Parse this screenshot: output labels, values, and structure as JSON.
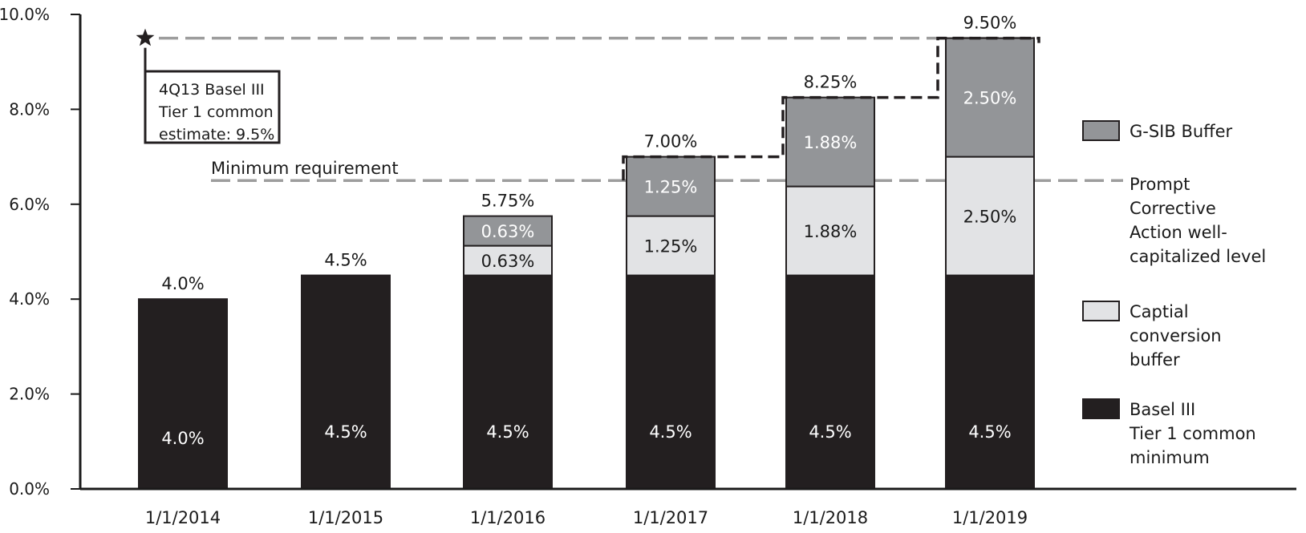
{
  "chart_data": {
    "type": "bar",
    "stacked": true,
    "title": "",
    "xlabel": "",
    "ylabel": "",
    "ylim": [
      0,
      10
    ],
    "y_ticks": [
      "0.0%",
      "2.0%",
      "4.0%",
      "6.0%",
      "8.0%",
      "10.0%"
    ],
    "categories": [
      "1/1/2014",
      "1/1/2015",
      "1/1/2016",
      "1/1/2017",
      "1/1/2018",
      "1/1/2019"
    ],
    "series": [
      {
        "name": "Basel III\nTier 1 common\nminimum",
        "color": "#231f20",
        "values": [
          4.0,
          4.5,
          4.5,
          4.5,
          4.5,
          4.5
        ],
        "labels": [
          "4.0%",
          "4.5%",
          "4.5%",
          "4.5%",
          "4.5%",
          "4.5%"
        ]
      },
      {
        "name": "Captial\nconversion\nbuffer",
        "color": "#e2e3e5",
        "values": [
          0,
          0,
          0.625,
          1.25,
          1.875,
          2.5
        ],
        "labels": [
          "",
          "",
          "0.63%",
          "1.25%",
          "1.88%",
          "2.50%"
        ]
      },
      {
        "name": "G-SIB Buffer",
        "color": "#939598",
        "values": [
          0,
          0,
          0.625,
          1.25,
          1.875,
          2.5
        ],
        "labels": [
          "",
          "",
          "0.63%",
          "1.25%",
          "1.88%",
          "2.50%"
        ]
      }
    ],
    "totals": [
      "4.0%",
      "4.5%",
      "5.75%",
      "7.00%",
      "8.25%",
      "9.50%"
    ],
    "legend_order": [
      2,
      1,
      0
    ],
    "legend_position": "right",
    "grid": false,
    "reference_lines": [
      {
        "label": "Minimum requirement",
        "right_label": "Prompt\nCorrective\nAction well-\ncapitalized level",
        "value": 6.5,
        "style": "dashed",
        "color": "#9d9d9d"
      },
      {
        "label": "4Q13 Basel III\nTier 1 common\nestimate: 9.5%",
        "value": 9.5,
        "style": "dashed",
        "color": "#9d9d9d",
        "marker": "star"
      }
    ],
    "step_line": {
      "style": "dashed",
      "color": "#231f20",
      "values": [
        6.5,
        6.5,
        6.5,
        7.0,
        8.25,
        9.5
      ]
    }
  }
}
